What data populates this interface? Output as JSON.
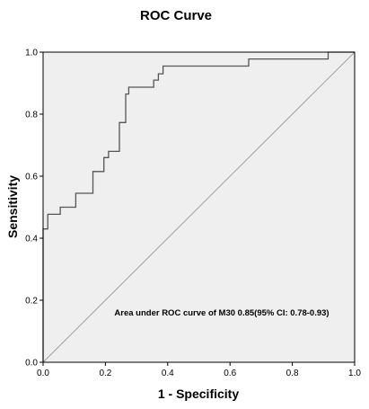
{
  "chart_data": {
    "type": "line",
    "title": "ROC Curve",
    "xlabel": "1 - Specificity",
    "ylabel": "Sensitivity",
    "xlim": [
      0.0,
      1.0
    ],
    "ylim": [
      0.0,
      1.0
    ],
    "x_ticks": [
      "0.0",
      "0.2",
      "0.4",
      "0.6",
      "0.8",
      "1.0"
    ],
    "y_ticks": [
      "0.0",
      "0.2",
      "0.4",
      "0.6",
      "0.8",
      "1.0"
    ],
    "annotation": "Area under ROC curve of M30 0.85(95% CI: 0.78-0.93)",
    "grid": false,
    "plot_background": "#efefef",
    "series": [
      {
        "style": "step",
        "color": "#555555",
        "points": [
          [
            0.0,
            0.0
          ],
          [
            0.0,
            0.43
          ],
          [
            0.015,
            0.43
          ],
          [
            0.015,
            0.477
          ],
          [
            0.055,
            0.477
          ],
          [
            0.055,
            0.5
          ],
          [
            0.105,
            0.5
          ],
          [
            0.105,
            0.545
          ],
          [
            0.16,
            0.545
          ],
          [
            0.16,
            0.615
          ],
          [
            0.195,
            0.615
          ],
          [
            0.195,
            0.66
          ],
          [
            0.21,
            0.66
          ],
          [
            0.21,
            0.68
          ],
          [
            0.245,
            0.68
          ],
          [
            0.245,
            0.773
          ],
          [
            0.265,
            0.773
          ],
          [
            0.265,
            0.865
          ],
          [
            0.275,
            0.865
          ],
          [
            0.275,
            0.887
          ],
          [
            0.355,
            0.887
          ],
          [
            0.355,
            0.91
          ],
          [
            0.37,
            0.91
          ],
          [
            0.37,
            0.93
          ],
          [
            0.385,
            0.93
          ],
          [
            0.385,
            0.955
          ],
          [
            0.66,
            0.955
          ],
          [
            0.66,
            0.978
          ],
          [
            0.915,
            0.978
          ],
          [
            0.915,
            1.0
          ],
          [
            1.0,
            1.0
          ]
        ]
      },
      {
        "style": "reference",
        "color": "#a0a0a0",
        "points": [
          [
            0.0,
            0.0
          ],
          [
            1.0,
            1.0
          ]
        ]
      }
    ]
  }
}
